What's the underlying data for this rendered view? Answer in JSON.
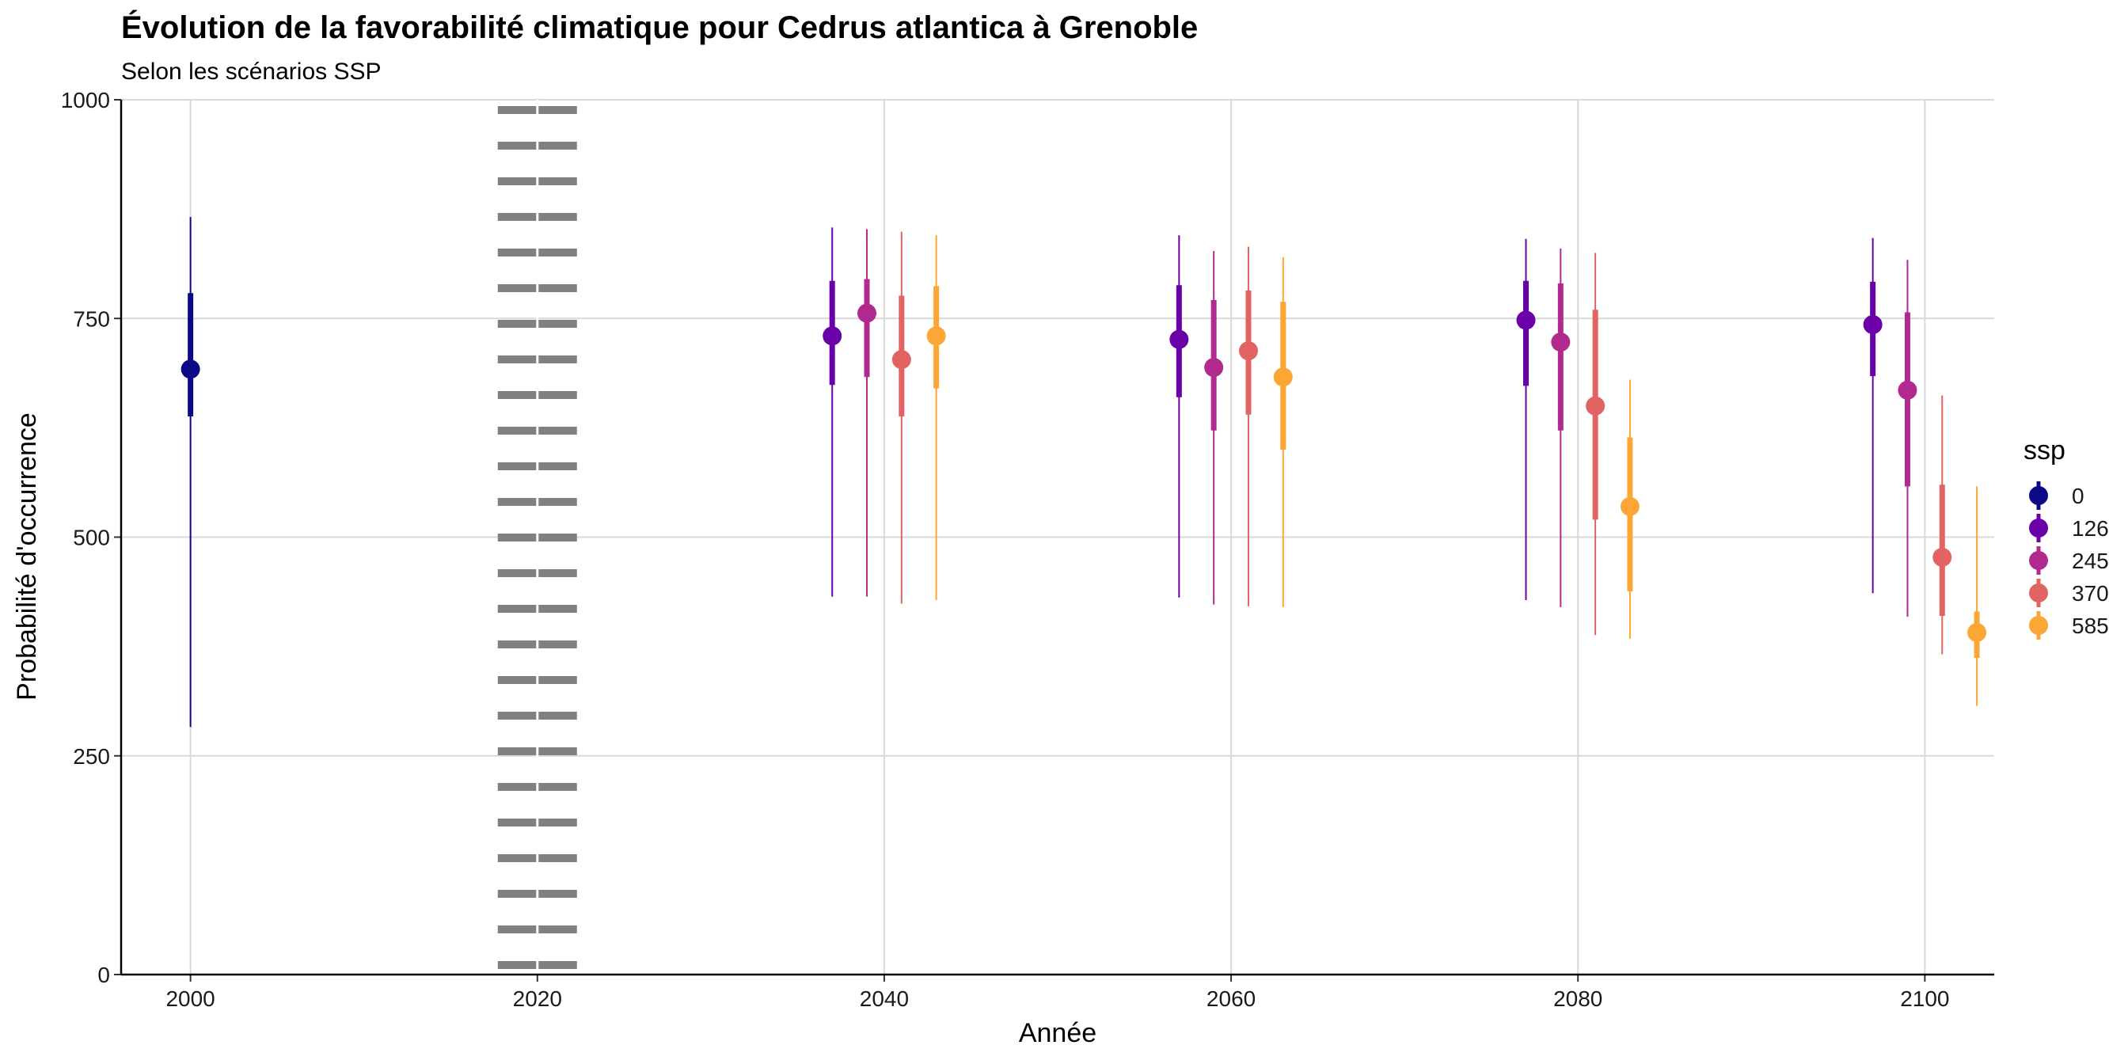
{
  "chart_data": {
    "type": "pointrange",
    "title": "Évolution de la favorabilité climatique pour Cedrus atlantica à Grenoble",
    "subtitle": "Selon les scénarios SSP",
    "xlabel": "Année",
    "ylabel": "Probabilité d'occurrence",
    "xlim": [
      1996,
      2104
    ],
    "ylim": [
      0,
      1000
    ],
    "x_ticks": [
      "2000",
      "2020",
      "2040",
      "2060",
      "2080",
      "2100"
    ],
    "y_ticks": [
      "0",
      "250",
      "500",
      "750",
      "1000"
    ],
    "reference_line": {
      "x": 2020,
      "style": "dotted",
      "color": "#808080"
    },
    "legend": {
      "title": "ssp",
      "position": "right"
    },
    "series": [
      {
        "name": "0",
        "color": "#0D0887",
        "points": [
          {
            "year": 2000,
            "median": 692,
            "q25": 638,
            "q75": 779,
            "min": 283,
            "max": 866
          }
        ]
      },
      {
        "name": "126",
        "color": "#6A00A8",
        "points": [
          {
            "year": 2037,
            "median": 730,
            "q25": 674,
            "q75": 793,
            "min": 432,
            "max": 854
          },
          {
            "year": 2057,
            "median": 726,
            "q25": 660,
            "q75": 788,
            "min": 431,
            "max": 845
          },
          {
            "year": 2077,
            "median": 748,
            "q25": 673,
            "q75": 793,
            "min": 428,
            "max": 841
          },
          {
            "year": 2097,
            "median": 743,
            "q25": 684,
            "q75": 792,
            "min": 436,
            "max": 842
          }
        ]
      },
      {
        "name": "245",
        "color": "#B12A90",
        "points": [
          {
            "year": 2039,
            "median": 756,
            "q25": 683,
            "q75": 795,
            "min": 432,
            "max": 852
          },
          {
            "year": 2059,
            "median": 694,
            "q25": 622,
            "q75": 771,
            "min": 423,
            "max": 827
          },
          {
            "year": 2079,
            "median": 723,
            "q25": 622,
            "q75": 790,
            "min": 420,
            "max": 830
          },
          {
            "year": 2099,
            "median": 668,
            "q25": 558,
            "q75": 757,
            "min": 409,
            "max": 817
          }
        ]
      },
      {
        "name": "370",
        "color": "#E16462",
        "points": [
          {
            "year": 2041,
            "median": 703,
            "q25": 638,
            "q75": 776,
            "min": 424,
            "max": 849
          },
          {
            "year": 2061,
            "median": 713,
            "q25": 640,
            "q75": 782,
            "min": 421,
            "max": 832
          },
          {
            "year": 2081,
            "median": 650,
            "q25": 520,
            "q75": 760,
            "min": 388,
            "max": 825
          },
          {
            "year": 2101,
            "median": 477,
            "q25": 410,
            "q75": 560,
            "min": 366,
            "max": 662
          }
        ]
      },
      {
        "name": "585",
        "color": "#FCA636",
        "points": [
          {
            "year": 2043,
            "median": 730,
            "q25": 670,
            "q75": 787,
            "min": 428,
            "max": 845
          },
          {
            "year": 2063,
            "median": 683,
            "q25": 600,
            "q75": 769,
            "min": 420,
            "max": 820
          },
          {
            "year": 2083,
            "median": 535,
            "q25": 438,
            "q75": 614,
            "min": 384,
            "max": 680
          },
          {
            "year": 2103,
            "median": 391,
            "q25": 362,
            "q75": 415,
            "min": 307,
            "max": 558
          }
        ]
      }
    ]
  }
}
